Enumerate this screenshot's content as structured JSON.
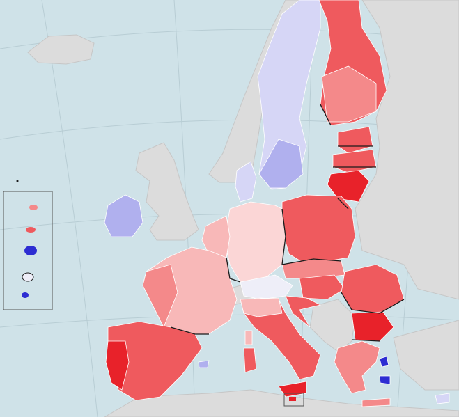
{
  "map": {
    "colors": {
      "sea": "#cfe2e8",
      "land_outside": "#dcdcdc",
      "graticule": "#b8cdd4",
      "border": "#1a1a1a",
      "region_stroke": "#ffffff",
      "inset_frame": "#555555",
      "strong_red": "#e8222a",
      "red": "#ef5a5e",
      "mid_red": "#f4898a",
      "light_red": "#f8b8b8",
      "very_light_red": "#fbd6d6",
      "neutral": "#eeeef8",
      "light_blue": "#d6d6f6",
      "mid_blue": "#b0b0ee",
      "blue": "#7f7fe6",
      "strong_blue": "#2d2dd2"
    },
    "shading": [
      {
        "region": "finland",
        "level": "red"
      },
      {
        "region": "sweden",
        "level": "light_blue"
      },
      {
        "region": "baltics",
        "level": "red"
      },
      {
        "region": "lithuania",
        "level": "strong_red"
      },
      {
        "region": "poland",
        "level": "red"
      },
      {
        "region": "germany",
        "level": "very_light_red"
      },
      {
        "region": "benelux",
        "level": "light_red"
      },
      {
        "region": "france",
        "level": "light_red"
      },
      {
        "region": "iberia",
        "level": "red"
      },
      {
        "region": "ireland",
        "level": "mid_blue"
      },
      {
        "region": "italy",
        "level": "red"
      },
      {
        "region": "alps",
        "level": "neutral"
      },
      {
        "region": "czechia_slovakia",
        "level": "mid_red"
      },
      {
        "region": "hungary",
        "level": "red"
      },
      {
        "region": "romania",
        "level": "red"
      },
      {
        "region": "bulgaria",
        "level": "strong_red"
      },
      {
        "region": "croatia",
        "level": "red"
      },
      {
        "region": "greece",
        "level": "mid_red"
      },
      {
        "region": "denmark",
        "level": "light_blue"
      },
      {
        "region": "islands_blue",
        "level": "strong_blue"
      }
    ]
  }
}
